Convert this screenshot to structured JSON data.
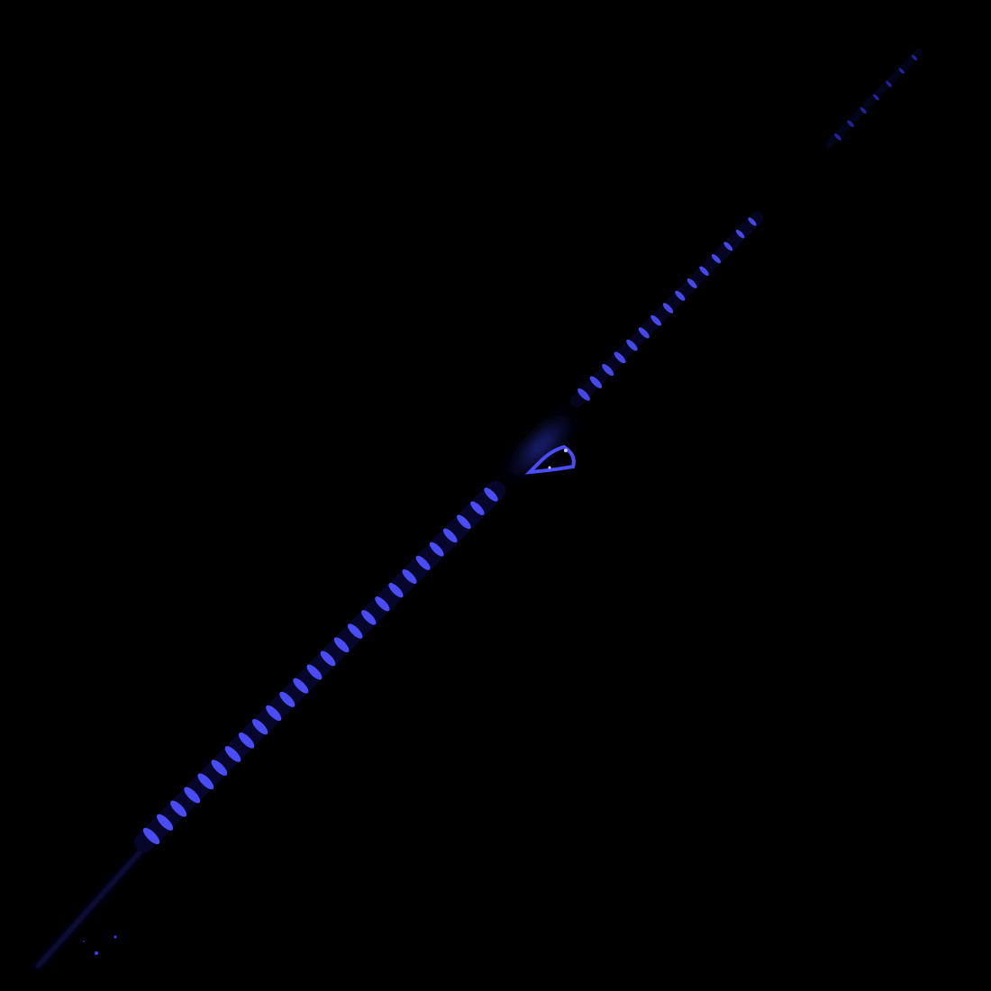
{
  "scene": {
    "subject": "fishing-rod",
    "colors": {
      "background": "#000000",
      "wrap_bright": "#4a4cf5",
      "wrap_dim": "#2a2cc0",
      "blank": "#0a0a3a",
      "glow": "#2f3cff"
    }
  }
}
